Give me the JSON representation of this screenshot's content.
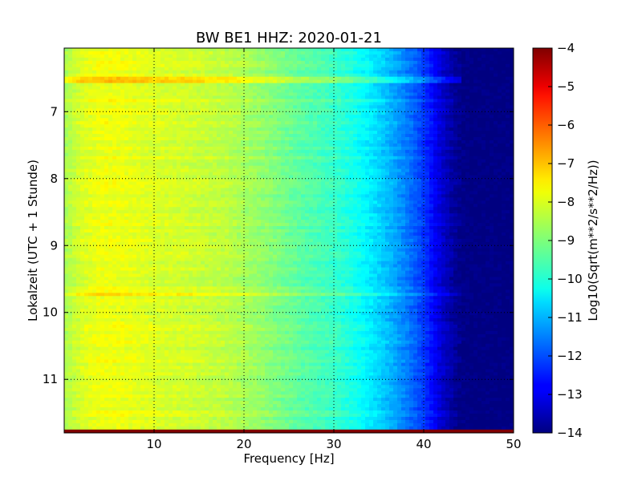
{
  "chart_data": {
    "type": "heatmap",
    "title": "BW BE1 HHZ: 2020-01-21",
    "xlabel": "Frequency [Hz]",
    "ylabel": "Lokalzeit (UTC + 1 Stunde)",
    "xlim": [
      0,
      50
    ],
    "ylim": [
      11.8,
      6.05
    ],
    "x_ticks": [
      10,
      20,
      30,
      40,
      50
    ],
    "y_ticks": [
      7,
      8,
      9,
      10,
      11
    ],
    "x_tick_labels": [
      "10",
      "20",
      "30",
      "40",
      "50"
    ],
    "y_tick_labels": [
      "7",
      "8",
      "9",
      "10",
      "11"
    ],
    "grid": true,
    "colormap": "jet",
    "colorbar": {
      "label": "Log10(Sqrt(m**2/s**2/Hz))",
      "range": [
        -14,
        -4
      ],
      "ticks": [
        -4,
        -5,
        -6,
        -7,
        -8,
        -9,
        -10,
        -11,
        -12,
        -13,
        -14
      ],
      "tick_labels": [
        "−4",
        "−5",
        "−6",
        "−7",
        "−8",
        "−9",
        "−10",
        "−11",
        "−12",
        "−13",
        "−14"
      ]
    },
    "spectral_profile": {
      "frequency_hz": [
        0,
        2,
        4,
        6,
        8,
        10,
        14,
        18,
        22,
        26,
        30,
        32,
        34,
        36,
        38,
        40,
        41,
        42,
        43,
        44,
        45,
        50
      ],
      "level": [
        -8.6,
        -8.1,
        -7.9,
        -7.9,
        -8.0,
        -8.1,
        -8.2,
        -8.4,
        -8.8,
        -9.3,
        -9.7,
        -10.0,
        -10.4,
        -10.9,
        -11.5,
        -12.2,
        -12.7,
        -13.2,
        -13.6,
        -13.9,
        -14.0,
        -14.0
      ]
    },
    "highlighted_rows": [
      {
        "time": 6.53,
        "offset": 0.75
      },
      {
        "time": 6.83,
        "offset": 0.3
      },
      {
        "time": 9.72,
        "offset": 0.6
      }
    ],
    "final_row": {
      "time_from": 11.75,
      "time_to": 11.8,
      "level": -4.0
    }
  }
}
